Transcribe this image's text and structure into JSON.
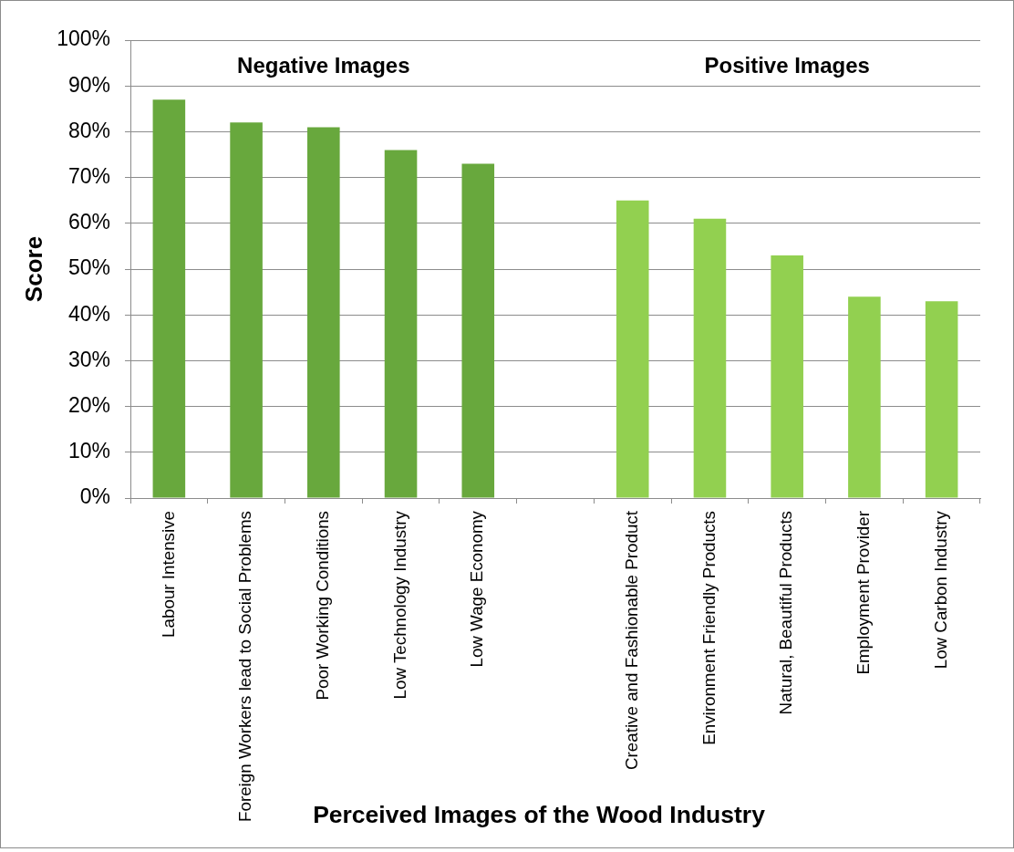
{
  "chart_data": {
    "type": "bar",
    "categories": [
      "Labour Intensive",
      "Foreign Workers lead to Social Problems",
      "Poor Working Conditions",
      "Low Technology Industry",
      "Low Wage Economy",
      null,
      "Creative and Fashionable Product",
      "Environment Friendly Products",
      "Natural, Beautiful Products",
      "Employment Provider",
      "Low Carbon Industry"
    ],
    "values": [
      87,
      82,
      81,
      76,
      73,
      null,
      65,
      61,
      53,
      44,
      43
    ],
    "colors": [
      "#68a83d",
      "#68a83d",
      "#68a83d",
      "#68a83d",
      "#68a83d",
      null,
      "#92d050",
      "#92d050",
      "#92d050",
      "#92d050",
      "#92d050"
    ],
    "xlabel": "Perceived Images of the Wood Industry",
    "ylabel": "Score",
    "ylim": [
      0,
      100
    ],
    "yticks": [
      {
        "value": 0,
        "label": "0%"
      },
      {
        "value": 10,
        "label": "10%"
      },
      {
        "value": 20,
        "label": "20%"
      },
      {
        "value": 30,
        "label": "30%"
      },
      {
        "value": 40,
        "label": "40%"
      },
      {
        "value": 50,
        "label": "50%"
      },
      {
        "value": 60,
        "label": "60%"
      },
      {
        "value": 70,
        "label": "70%"
      },
      {
        "value": 80,
        "label": "80%"
      },
      {
        "value": 90,
        "label": "90%"
      },
      {
        "value": 100,
        "label": "100%"
      }
    ],
    "grid": "y",
    "legend": false,
    "annotations": [
      "Negative Images",
      "Positive Images"
    ]
  }
}
